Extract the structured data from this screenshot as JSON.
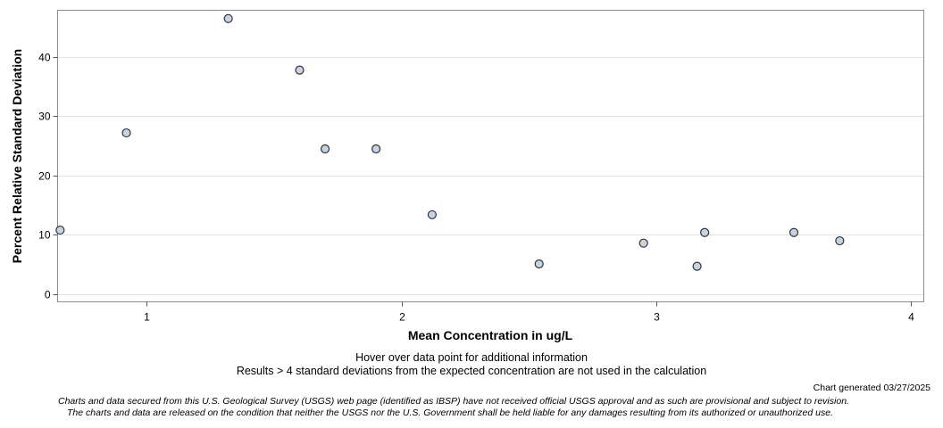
{
  "chart_data": {
    "type": "scatter",
    "title": "",
    "xlabel": "Mean Concentration in ug/L",
    "ylabel": "Percent Relative Standard Deviation",
    "xlim": [
      0.65,
      4.05
    ],
    "ylim": [
      -1.3,
      47.9
    ],
    "xticks": [
      1,
      2,
      3,
      4
    ],
    "yticks": [
      0,
      10,
      20,
      30,
      40
    ],
    "grid": true,
    "marker_fill": "#c6d2e6",
    "marker_stroke": "#333333",
    "points": [
      {
        "x": 0.66,
        "y": 10.8
      },
      {
        "x": 0.92,
        "y": 27.2
      },
      {
        "x": 1.32,
        "y": 46.5
      },
      {
        "x": 1.6,
        "y": 37.8
      },
      {
        "x": 1.7,
        "y": 24.5
      },
      {
        "x": 1.9,
        "y": 24.5
      },
      {
        "x": 2.12,
        "y": 13.4
      },
      {
        "x": 2.54,
        "y": 5.1
      },
      {
        "x": 2.95,
        "y": 8.6
      },
      {
        "x": 3.16,
        "y": 4.7
      },
      {
        "x": 3.19,
        "y": 10.4
      },
      {
        "x": 3.54,
        "y": 10.4
      },
      {
        "x": 3.72,
        "y": 9.0
      }
    ]
  },
  "notes": {
    "hover": "Hover over data point for additional information",
    "results": "Results > 4 standard deviations from the expected concentration are not used in the calculation"
  },
  "generated": "Chart generated 03/27/2025",
  "disclaimer": {
    "line1": "Charts and data secured from this U.S. Geological Survey (USGS) web page (identified as IBSP) have not received official USGS approval and as such are provisional and subject to revision.",
    "line2": "The charts and data are released on the condition that neither the USGS nor the U.S. Government shall be held liable for any damages resulting from its authorized or unauthorized use."
  }
}
